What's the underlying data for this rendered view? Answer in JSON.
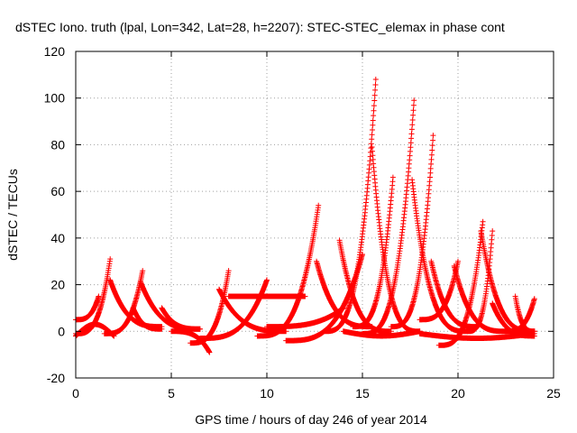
{
  "chart_data": {
    "type": "scatter",
    "title": "dSTEC Iono. truth (lpal, Lon=342, Lat=28, h=2207): STEC-STEC_elemax in phase cont",
    "xlabel": "GPS time / hours of day 246 of year 2014",
    "ylabel": "dSTEC  / TECUs",
    "xlim": [
      0,
      25
    ],
    "ylim": [
      -20,
      120
    ],
    "xticks": [
      0,
      5,
      10,
      15,
      20,
      25
    ],
    "yticks": [
      -20,
      0,
      20,
      40,
      60,
      80,
      100,
      120
    ],
    "grid": true,
    "marker": "+",
    "color": "#ff0000",
    "arcs": [
      {
        "x0": 0.0,
        "x1": 1.8,
        "y0": -1,
        "peak": 31,
        "side": "end"
      },
      {
        "x0": 0.0,
        "x1": 1.2,
        "y0": 5,
        "peak": 15,
        "side": "end"
      },
      {
        "x0": 0.0,
        "x1": 2.0,
        "y0": -2,
        "peak": 3,
        "side": "flat"
      },
      {
        "x0": 1.8,
        "x1": 4.5,
        "y0": 2,
        "peak": 22,
        "side": "start"
      },
      {
        "x0": 1.5,
        "x1": 3.5,
        "y0": -1,
        "peak": 26,
        "side": "end"
      },
      {
        "x0": 3.4,
        "x1": 6.5,
        "y0": 1,
        "peak": 21,
        "side": "start"
      },
      {
        "x0": 3.0,
        "x1": 4.5,
        "y0": 1,
        "peak": 10,
        "side": "start"
      },
      {
        "x0": 4.5,
        "x1": 6.5,
        "y0": 1,
        "peak": 10,
        "side": "start"
      },
      {
        "x0": 5.0,
        "x1": 7.0,
        "y0": 0,
        "peak": -9,
        "side": "end"
      },
      {
        "x0": 6.0,
        "x1": 8.0,
        "y0": -5,
        "peak": 26,
        "side": "end"
      },
      {
        "x0": 6.5,
        "x1": 10.0,
        "y0": -3,
        "peak": 22,
        "side": "end"
      },
      {
        "x0": 7.5,
        "x1": 11.0,
        "y0": 0,
        "peak": 18,
        "side": "start"
      },
      {
        "x0": 8.0,
        "x1": 12.0,
        "y0": 15,
        "peak": 15,
        "side": "flat"
      },
      {
        "x0": 9.5,
        "x1": 12.7,
        "y0": -2,
        "peak": 54,
        "side": "end"
      },
      {
        "x0": 10.0,
        "x1": 14.0,
        "y0": 2,
        "peak": 10,
        "side": "end"
      },
      {
        "x0": 11.0,
        "x1": 15.0,
        "y0": -4,
        "peak": 33,
        "side": "end"
      },
      {
        "x0": 12.6,
        "x1": 15.5,
        "y0": 2,
        "peak": 30,
        "side": "start"
      },
      {
        "x0": 13.0,
        "x1": 15.7,
        "y0": 0,
        "peak": 108,
        "side": "end"
      },
      {
        "x0": 13.8,
        "x1": 16.5,
        "y0": 0,
        "peak": 39,
        "side": "start"
      },
      {
        "x0": 15.5,
        "x1": 18.0,
        "y0": 0,
        "peak": 79,
        "side": "start"
      },
      {
        "x0": 14.5,
        "x1": 16.6,
        "y0": 2,
        "peak": 66,
        "side": "end"
      },
      {
        "x0": 15.0,
        "x1": 17.7,
        "y0": -1,
        "peak": 99,
        "side": "end"
      },
      {
        "x0": 17.6,
        "x1": 20.5,
        "y0": 0,
        "peak": 65,
        "side": "start"
      },
      {
        "x0": 16.5,
        "x1": 18.7,
        "y0": 2,
        "peak": 84,
        "side": "end"
      },
      {
        "x0": 18.6,
        "x1": 21.0,
        "y0": 2,
        "peak": 30,
        "side": "start"
      },
      {
        "x0": 18.0,
        "x1": 20.0,
        "y0": 5,
        "peak": 30,
        "side": "end"
      },
      {
        "x0": 19.8,
        "x1": 22.5,
        "y0": 0,
        "peak": 28,
        "side": "start"
      },
      {
        "x0": 19.0,
        "x1": 21.3,
        "y0": -6,
        "peak": 47,
        "side": "end"
      },
      {
        "x0": 21.2,
        "x1": 24.0,
        "y0": 0,
        "peak": 43,
        "side": "start"
      },
      {
        "x0": 20.5,
        "x1": 21.8,
        "y0": 0,
        "peak": 43,
        "side": "end"
      },
      {
        "x0": 21.8,
        "x1": 24.0,
        "y0": -2,
        "peak": 12,
        "side": "start"
      },
      {
        "x0": 22.5,
        "x1": 24.0,
        "y0": 0,
        "peak": 14,
        "side": "end"
      },
      {
        "x0": 23.0,
        "x1": 24.0,
        "y0": 0,
        "peak": 15,
        "side": "start"
      },
      {
        "x0": 14.0,
        "x1": 18.0,
        "y0": 0,
        "peak": -2,
        "side": "flat"
      },
      {
        "x0": 18.0,
        "x1": 24.0,
        "y0": -1,
        "peak": -3,
        "side": "flat"
      }
    ]
  }
}
